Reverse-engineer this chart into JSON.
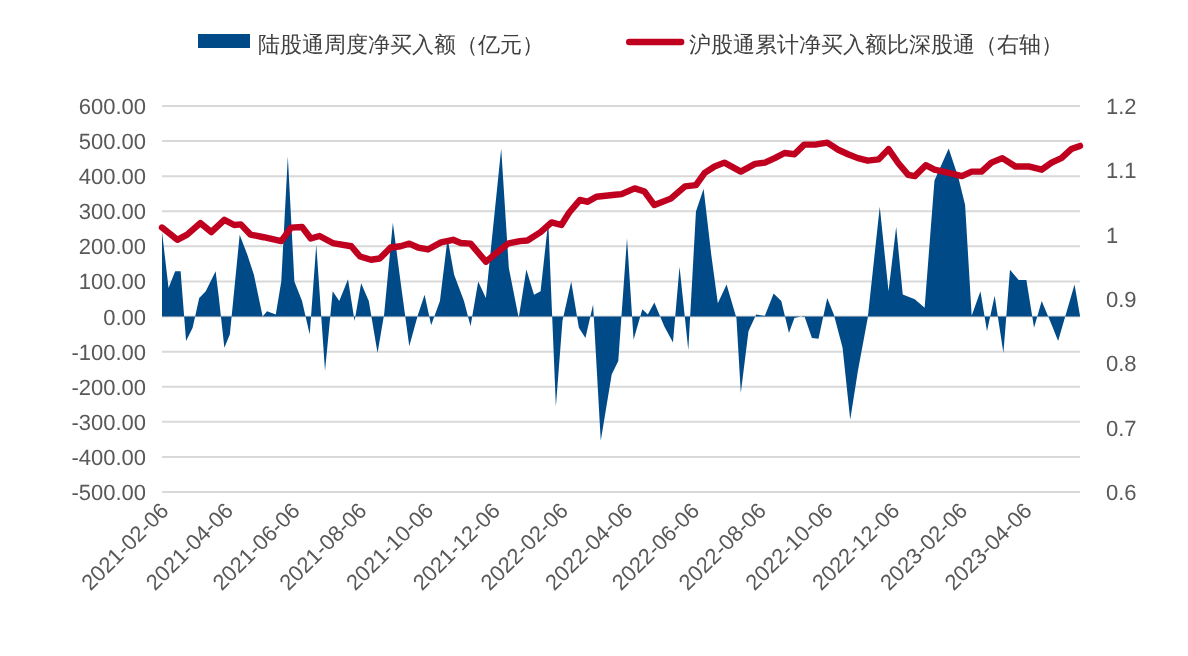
{
  "chart_data": {
    "type": "area",
    "legend": "top",
    "grid": "y",
    "xlim": [
      "2021-02-06",
      "2023-05-26"
    ],
    "xticks": [
      "2021-02-06",
      "2021-04-06",
      "2021-06-06",
      "2021-08-06",
      "2021-10-06",
      "2021-12-06",
      "2022-02-06",
      "2022-04-06",
      "2022-06-06",
      "2022-08-06",
      "2022-10-06",
      "2022-12-06",
      "2023-02-06",
      "2023-04-06"
    ],
    "ylim": [
      -500,
      600
    ],
    "yticks": [
      {
        "value": -500,
        "label": "-500.00"
      },
      {
        "value": -400,
        "label": "-400.00"
      },
      {
        "value": -300,
        "label": "-300.00"
      },
      {
        "value": -200,
        "label": "-200.00"
      },
      {
        "value": -100,
        "label": "-100.00"
      },
      {
        "value": 0,
        "label": "0.00"
      },
      {
        "value": 100,
        "label": "100.00"
      },
      {
        "value": 200,
        "label": "200.00"
      },
      {
        "value": 300,
        "label": "300.00"
      },
      {
        "value": 400,
        "label": "400.00"
      },
      {
        "value": 500,
        "label": "500.00"
      },
      {
        "value": 600,
        "label": "600.00"
      }
    ],
    "y2lim": [
      0.6,
      1.2
    ],
    "y2ticks": [
      0.6,
      0.7,
      0.8,
      0.9,
      1,
      1.1,
      1.2
    ],
    "series": [
      {
        "name": "陆股通周度净买入额（亿元）",
        "color": "#004b87",
        "x": [
          "2021-02-06",
          "2021-02-12",
          "2021-02-18",
          "2021-02-23",
          "2021-02-28",
          "2021-03-06",
          "2021-03-12",
          "2021-03-18",
          "2021-03-27",
          "2021-03-30",
          "2021-04-04",
          "2021-04-09",
          "2021-04-18",
          "2021-04-25",
          "2021-05-01",
          "2021-05-09",
          "2021-05-13",
          "2021-05-21",
          "2021-05-26",
          "2021-06-01",
          "2021-06-07",
          "2021-06-14",
          "2021-06-21",
          "2021-06-27",
          "2021-07-05",
          "2021-07-12",
          "2021-07-18",
          "2021-07-26",
          "2021-08-01",
          "2021-08-07",
          "2021-08-14",
          "2021-08-22",
          "2021-08-28",
          "2021-09-05",
          "2021-09-12",
          "2021-09-20",
          "2021-09-28",
          "2021-10-04",
          "2021-10-10",
          "2021-10-18",
          "2021-10-25",
          "2021-10-31",
          "2021-11-09",
          "2021-11-15",
          "2021-11-22",
          "2021-11-29",
          "2021-12-13",
          "2021-12-20",
          "2021-12-29",
          "2022-01-05",
          "2022-01-12",
          "2022-01-18",
          "2022-01-25",
          "2022-02-01",
          "2022-02-07",
          "2022-02-15",
          "2022-02-22",
          "2022-02-28",
          "2022-03-07",
          "2022-03-14",
          "2022-03-24",
          "2022-03-30",
          "2022-04-07",
          "2022-04-13",
          "2022-04-21",
          "2022-04-26",
          "2022-05-02",
          "2022-05-11",
          "2022-05-19",
          "2022-05-25",
          "2022-06-02",
          "2022-06-09",
          "2022-06-16",
          "2022-06-23",
          "2022-06-29",
          "2022-07-07",
          "2022-07-16",
          "2022-07-20",
          "2022-07-27",
          "2022-08-03",
          "2022-08-11",
          "2022-08-19",
          "2022-08-26",
          "2022-09-02",
          "2022-09-07",
          "2022-09-16",
          "2022-09-23",
          "2022-09-29",
          "2022-10-07",
          "2022-10-13",
          "2022-10-21",
          "2022-10-28",
          "2022-11-04",
          "2022-11-13",
          "2022-11-24",
          "2022-12-02",
          "2022-12-09",
          "2022-12-15",
          "2022-12-26",
          "2023-01-04",
          "2023-01-13",
          "2023-01-26",
          "2023-02-04",
          "2023-02-10",
          "2023-02-16",
          "2023-02-24",
          "2023-03-02",
          "2023-03-09",
          "2023-03-17",
          "2023-03-23",
          "2023-03-31",
          "2023-04-07",
          "2023-04-14",
          "2023-04-21",
          "2023-04-30",
          "2023-05-06",
          "2023-05-21",
          "2023-05-26"
        ],
        "values": [
          242,
          81,
          129,
          129,
          -70,
          -32,
          53,
          72,
          129,
          53,
          -89,
          -51,
          233,
          176,
          119,
          0,
          15,
          6,
          100,
          456,
          100,
          44,
          -51,
          205,
          -155,
          72,
          44,
          106,
          -13,
          95,
          44,
          -104,
          6,
          267,
          100,
          -85,
          6,
          62,
          -25,
          44,
          223,
          119,
          44,
          -28,
          100,
          53,
          479,
          138,
          -4,
          134,
          62,
          72,
          271,
          -256,
          -13,
          100,
          -32,
          -61,
          34,
          -354,
          -165,
          -127,
          223,
          -66,
          21,
          6,
          40,
          -28,
          -74,
          142,
          -95,
          299,
          364,
          176,
          38,
          91,
          -4,
          -218,
          -42,
          6,
          2,
          66,
          44,
          -47,
          -4,
          2,
          -61,
          -63,
          53,
          6,
          -89,
          -294,
          -155,
          -4,
          313,
          72,
          256,
          63,
          49,
          25,
          388,
          479,
          394,
          318,
          2,
          72,
          -42,
          59,
          -104,
          133,
          104,
          104,
          -32,
          44,
          -23,
          -70,
          91,
          2
        ]
      },
      {
        "name": "沪股通累计净买入额比深股通（右轴）",
        "type": "line",
        "axis": "y2",
        "color": "#c0001f",
        "x": [
          "2021-02-06",
          "2021-02-20",
          "2021-03-01",
          "2021-03-13",
          "2021-03-23",
          "2021-04-04",
          "2021-04-13",
          "2021-04-19",
          "2021-04-28",
          "2021-05-10",
          "2021-05-26",
          "2021-06-04",
          "2021-06-14",
          "2021-06-22",
          "2021-06-30",
          "2021-07-12",
          "2021-07-29",
          "2021-08-06",
          "2021-08-16",
          "2021-08-24",
          "2021-09-03",
          "2021-09-12",
          "2021-09-20",
          "2021-09-28",
          "2021-10-07",
          "2021-10-19",
          "2021-10-30",
          "2021-11-06",
          "2021-11-15",
          "2021-11-29",
          "2021-12-07",
          "2021-12-19",
          "2021-12-30",
          "2022-01-06",
          "2022-01-18",
          "2022-01-28",
          "2022-02-06",
          "2022-02-13",
          "2022-02-23",
          "2022-03-02",
          "2022-03-10",
          "2022-03-27",
          "2022-04-02",
          "2022-04-14",
          "2022-04-23",
          "2022-05-02",
          "2022-05-17",
          "2022-05-30",
          "2022-06-09",
          "2022-06-17",
          "2022-06-26",
          "2022-07-05",
          "2022-07-20",
          "2022-08-02",
          "2022-08-11",
          "2022-08-20",
          "2022-08-29",
          "2022-09-07",
          "2022-09-16",
          "2022-09-26",
          "2022-10-07",
          "2022-10-17",
          "2022-10-26",
          "2022-11-04",
          "2022-11-13",
          "2022-11-23",
          "2022-12-02",
          "2022-12-11",
          "2022-12-20",
          "2022-12-26",
          "2023-01-05",
          "2023-01-13",
          "2023-01-26",
          "2023-02-07",
          "2023-02-16",
          "2023-02-25",
          "2023-03-06",
          "2023-03-16",
          "2023-03-28",
          "2023-04-09",
          "2023-04-21",
          "2023-04-30",
          "2023-05-09",
          "2023-05-18",
          "2023-05-26"
        ],
        "values": [
          1.011,
          0.992,
          1.0,
          1.018,
          1.004,
          1.023,
          1.015,
          1.016,
          1.0,
          0.996,
          0.99,
          1.011,
          1.012,
          0.994,
          0.998,
          0.987,
          0.982,
          0.966,
          0.961,
          0.963,
          0.98,
          0.982,
          0.986,
          0.98,
          0.977,
          0.988,
          0.992,
          0.987,
          0.986,
          0.958,
          0.969,
          0.986,
          0.99,
          0.991,
          1.004,
          1.019,
          1.015,
          1.034,
          1.054,
          1.051,
          1.059,
          1.062,
          1.063,
          1.072,
          1.067,
          1.046,
          1.056,
          1.075,
          1.077,
          1.096,
          1.106,
          1.112,
          1.098,
          1.11,
          1.112,
          1.119,
          1.127,
          1.125,
          1.14,
          1.14,
          1.143,
          1.132,
          1.125,
          1.119,
          1.115,
          1.117,
          1.133,
          1.111,
          1.093,
          1.091,
          1.108,
          1.101,
          1.096,
          1.091,
          1.098,
          1.098,
          1.112,
          1.119,
          1.106,
          1.106,
          1.101,
          1.112,
          1.119,
          1.133,
          1.138
        ]
      }
    ]
  }
}
